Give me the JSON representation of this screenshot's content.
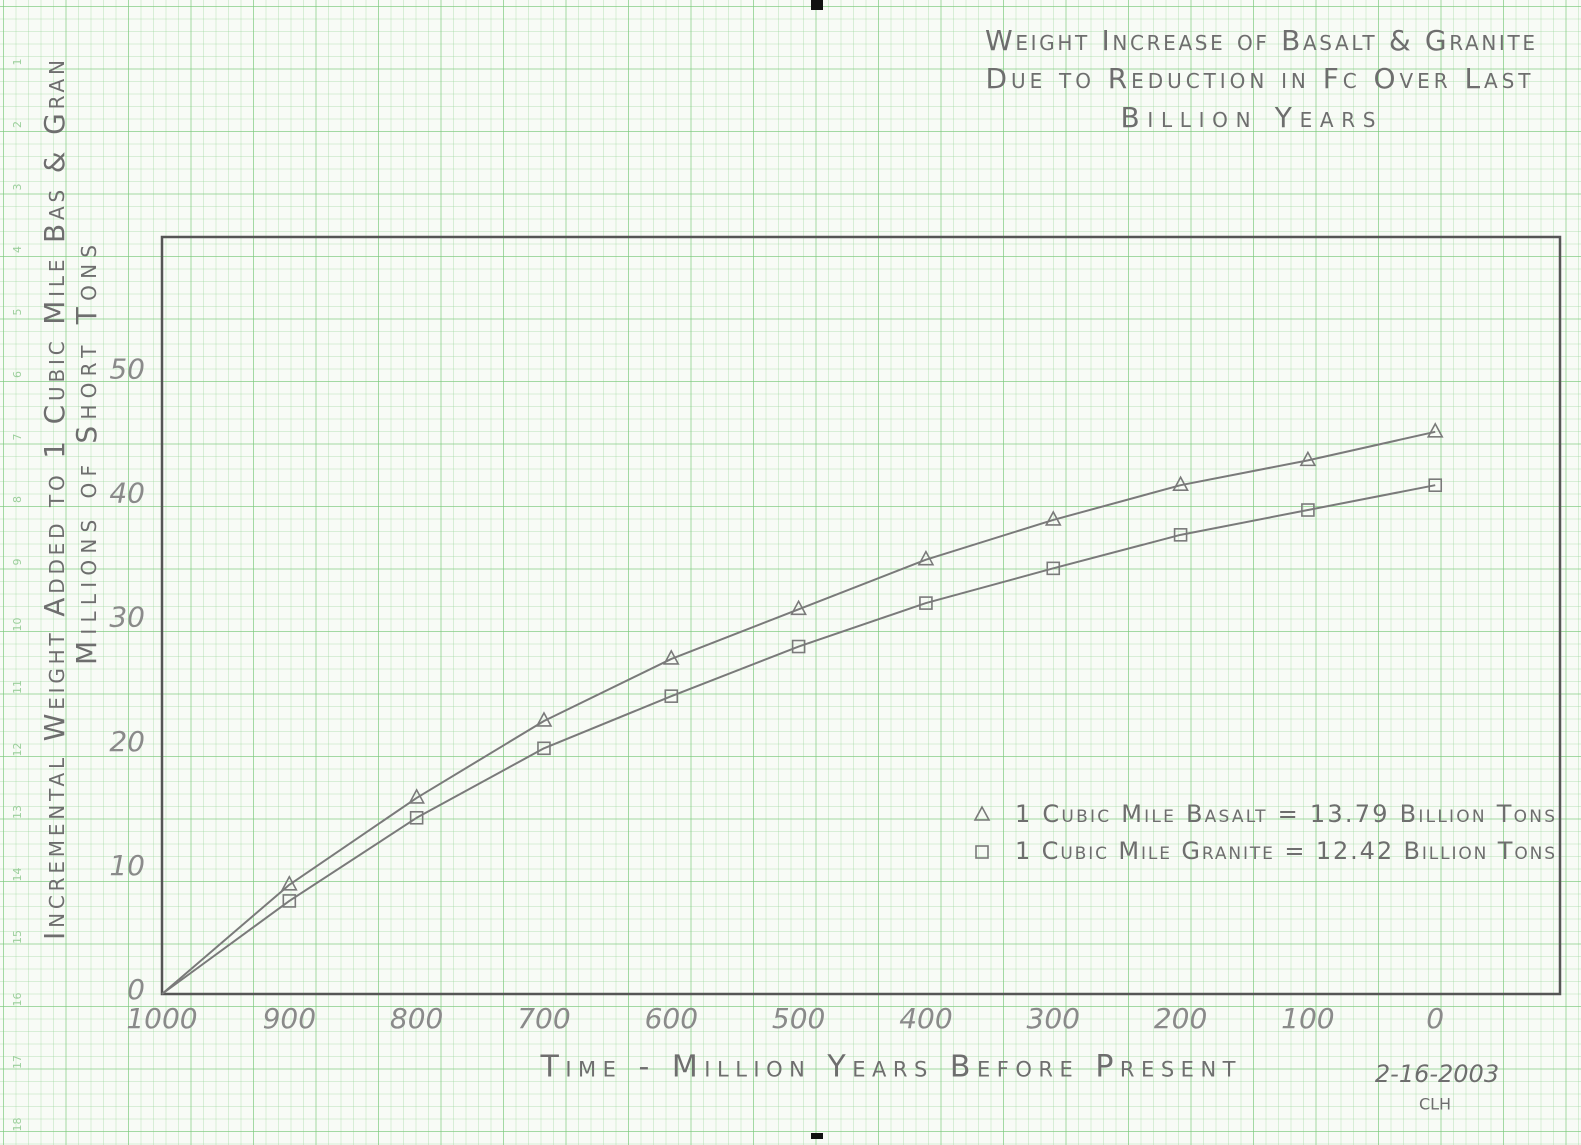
{
  "paper": {
    "row_numbers": [
      1,
      2,
      3,
      4,
      5,
      6,
      7,
      8,
      9,
      10,
      11,
      12,
      13,
      14,
      15,
      16,
      17,
      18
    ]
  },
  "chart_data": {
    "type": "line",
    "title": [
      "Weight Increase of Basalt & Granite",
      "Due to Reduction in Fc Over Last",
      "Billion Years"
    ],
    "x_label": "Time - Million Years Before Present",
    "y_label": [
      "Incremental Weight Added to 1 Cubic Mile Bas & Gran",
      "Millions of Short Tons"
    ],
    "annotations": [
      "2-16-2003",
      "CLH"
    ],
    "x": [
      1000,
      900,
      800,
      700,
      600,
      500,
      400,
      300,
      200,
      100,
      0
    ],
    "series": [
      {
        "name": "1 Cubic Mile Basalt = 13.79 Billion Tons",
        "color": "#7a7a7a",
        "marker": "triangle",
        "values": [
          0,
          8.8,
          15.8,
          22,
          27,
          31,
          35,
          38.2,
          41,
          43,
          45.3
        ]
      },
      {
        "name": "1 Cubic Mile Granite = 12.42 Billion Tons",
        "color": "#7a7a7a",
        "marker": "square",
        "values": [
          0,
          7.5,
          14.2,
          19.8,
          24,
          28,
          31.5,
          34.3,
          37,
          39,
          41
        ]
      }
    ],
    "xlim": [
      1000,
      -98
    ],
    "ylim": [
      0,
      61
    ],
    "xticks": [
      1000,
      900,
      800,
      700,
      600,
      500,
      400,
      300,
      200,
      100,
      0
    ],
    "yticks": [
      0,
      10,
      20,
      30,
      40,
      50
    ],
    "grid": false,
    "legend": "lower right"
  }
}
